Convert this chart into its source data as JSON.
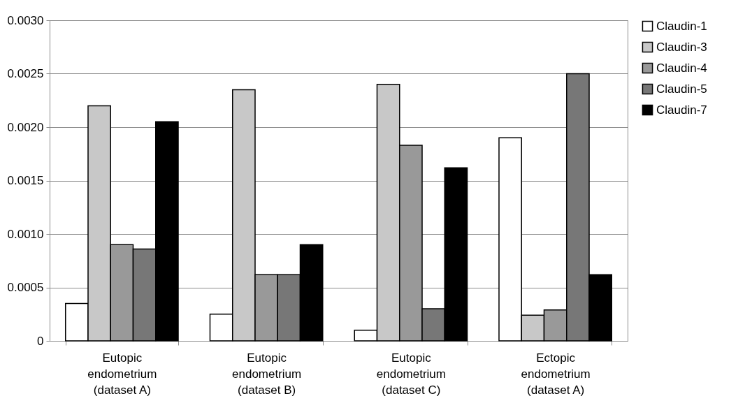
{
  "chart_data": {
    "type": "bar",
    "categories": [
      "Eutopic\nendometrium\n(dataset A)",
      "Eutopic\nendometrium\n(dataset B)",
      "Eutopic\nendometrium\n(dataset C)",
      "Ectopic\nendometrium\n(dataset A)"
    ],
    "series": [
      {
        "name": "Claudin-1",
        "color": "#ffffff",
        "values": [
          0.00035,
          0.00025,
          0.0001,
          0.0019
        ]
      },
      {
        "name": "Claudin-3",
        "color": "#c8c8c8",
        "values": [
          0.0022,
          0.00235,
          0.0024,
          0.00024
        ]
      },
      {
        "name": "Claudin-4",
        "color": "#999999",
        "values": [
          0.0009,
          0.00062,
          0.00183,
          0.00029
        ]
      },
      {
        "name": "Claudin-5",
        "color": "#777777",
        "values": [
          0.00086,
          0.00062,
          0.0003,
          0.0025
        ]
      },
      {
        "name": "Claudin-7",
        "color": "#000000",
        "values": [
          0.00205,
          0.0009,
          0.00162,
          0.00062
        ]
      }
    ],
    "ylim": [
      0,
      0.003
    ],
    "yticks": [
      0,
      {
        "value": 0.0005,
        "label": "0.0005"
      },
      {
        "value": 0.001,
        "label": "0.0010"
      },
      {
        "value": 0.0015,
        "label": "0.0015"
      },
      {
        "value": 0.002,
        "label": "0.0020"
      },
      {
        "value": 0.0025,
        "label": "0.0025"
      },
      {
        "value": 0.003,
        "label": "0.0030"
      }
    ],
    "grid": "y",
    "legend": "right"
  }
}
